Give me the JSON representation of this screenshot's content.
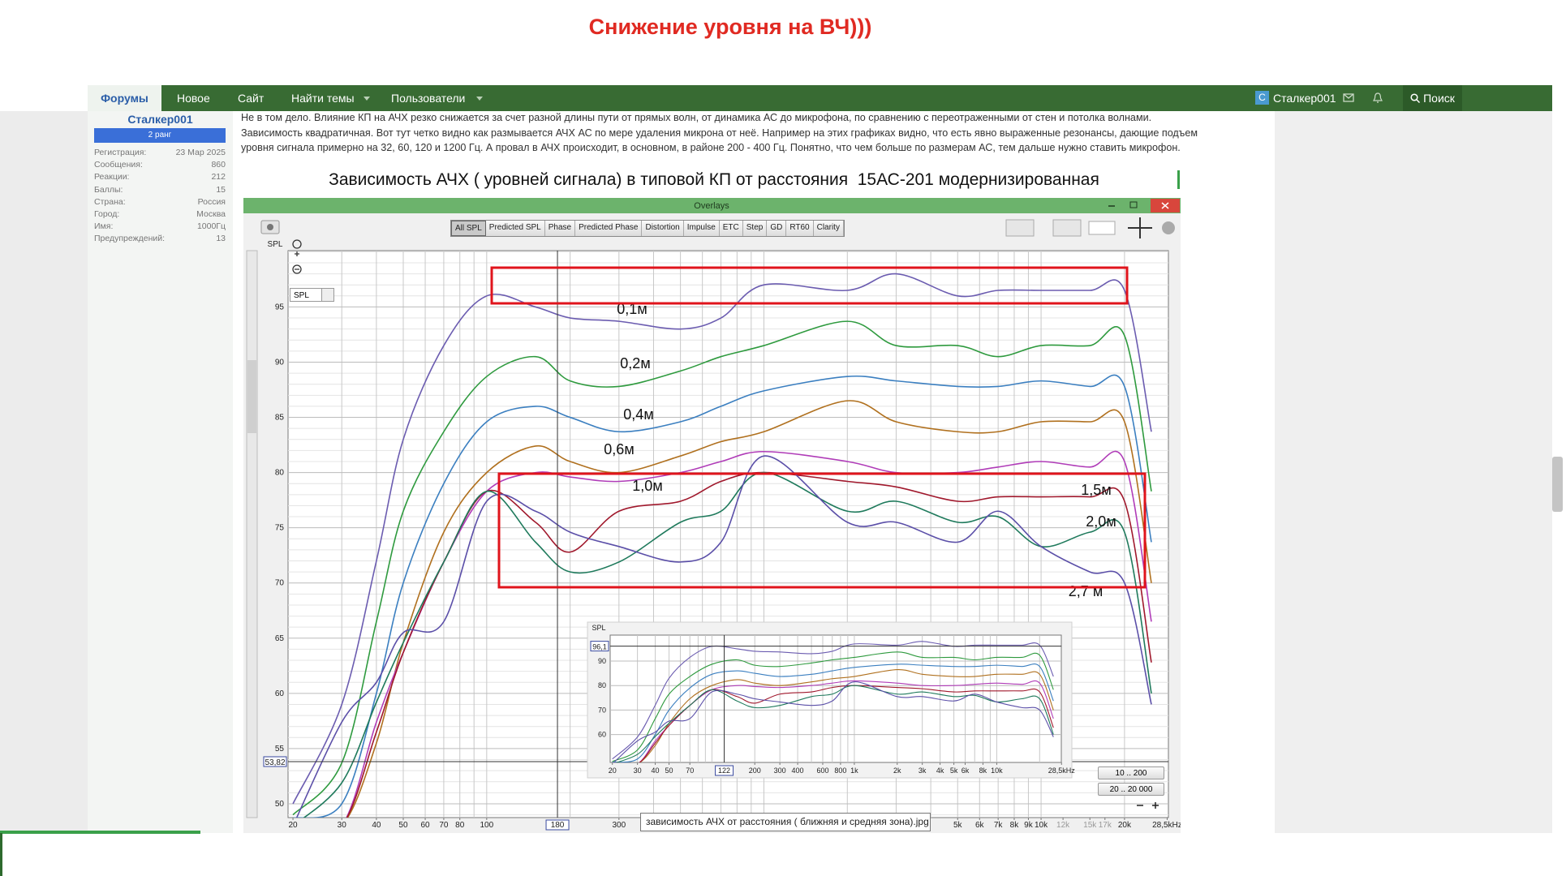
{
  "header": {
    "title": "Снижение уровня на ВЧ)))"
  },
  "nav": {
    "items": [
      "Форумы",
      "Новое",
      "Сайт",
      "Найти темы",
      "Пользователи"
    ],
    "avatar": "С",
    "user": "Сталкер001",
    "search": "Поиск"
  },
  "sidebar": {
    "username": "Сталкер001",
    "rank": "2 ранг",
    "stats": [
      {
        "label": "Регистрация:",
        "value": "23 Мар 2025"
      },
      {
        "label": "Сообщения:",
        "value": "860"
      },
      {
        "label": "Реакции:",
        "value": "212"
      },
      {
        "label": "Баллы:",
        "value": "15"
      },
      {
        "label": "Страна:",
        "value": "Россия"
      },
      {
        "label": "Город:",
        "value": "Москва"
      },
      {
        "label": "Имя:",
        "value": "1000Гц"
      },
      {
        "label": "Предупреждений:",
        "value": "13"
      }
    ]
  },
  "post": {
    "lines": [
      "Не в том дело. Влияние КП на АЧХ резко снижается за счет разной длины пути от прямых волн, от динамика АС до микрофона, по сравнению с переотраженными от стен и потолка волнами.",
      "Зависимость квадратичная. Вот тут четко видно как размывается АЧХ АС по мере удаления микрона от неё. Например на этих графиках видно, что есть явно выраженные резонансы, дающие подъем",
      "уровня сигнала примерно на 32, 60, 120 и 1200 Гц. А провал в АЧХ происходит, в основном, в районе 200 - 400 Гц. Понятно, что чем больше по размерам АС, тем дальше нужно ставить микрофон."
    ]
  },
  "image": {
    "caption": "Зависимость АЧХ ( уровней сигнала) в типовой КП от расстояния  15АС-201 модернизированная",
    "window_title": "Overlays",
    "toolbar": [
      "All SPL",
      "Predicted SPL",
      "Phase",
      "Predicted Phase",
      "Distortion",
      "Impulse",
      "ETC",
      "Step",
      "GD",
      "RT60",
      "Clarity"
    ],
    "dropdown": "SPL",
    "zoom_buttons": [
      "10 .. 200",
      "20 .. 20 000"
    ],
    "tooltip": "зависимость АЧХ от расстояния ( ближняя и средняя зона).jpg",
    "chart": {
      "type": "line",
      "log_x": true,
      "y_label": "SPL",
      "xlim": [
        19.2,
        28800
      ],
      "ylim": [
        48.75,
        100.1
      ],
      "yticks": [
        50,
        55,
        60,
        65,
        70,
        75,
        80,
        85,
        90,
        95
      ],
      "ygrid": [
        49,
        51,
        52,
        53,
        54,
        56,
        57,
        58,
        59,
        61,
        62,
        63,
        64,
        66,
        67,
        68,
        69,
        71,
        72,
        73,
        74,
        76,
        77,
        78,
        79,
        81,
        82,
        83,
        84,
        86,
        87,
        88,
        89,
        91,
        92,
        93,
        94,
        96,
        97,
        98,
        99,
        100
      ],
      "xgrid": [
        30,
        40,
        50,
        60,
        70,
        80,
        90,
        100,
        200,
        300,
        400,
        500,
        600,
        700,
        800,
        900,
        1000,
        2000,
        3000,
        4000,
        5000,
        6000,
        7000,
        8000,
        9000,
        10000,
        20000
      ],
      "xticks": [
        20,
        30,
        40,
        50,
        60,
        70,
        80,
        100,
        300,
        {
          "value": 5000,
          "label": "5k"
        },
        {
          "value": 6000,
          "label": "6k"
        },
        {
          "value": 7000,
          "label": "7k"
        },
        {
          "value": 8000,
          "label": "8k"
        },
        {
          "value": 9000,
          "label": "9k"
        },
        {
          "value": 10000,
          "label": "10k"
        },
        {
          "value": 12000,
          "label": "12k"
        },
        {
          "value": 15000,
          "label": "15k"
        },
        {
          "value": 17000,
          "label": "17k"
        },
        {
          "value": 20000,
          "label": "20k"
        },
        {
          "value": 28500,
          "label": "28,5kHz"
        }
      ],
      "cursor": {
        "x": {
          "value": 180,
          "label": "180"
        },
        "y": {
          "value": 53.82,
          "label": "53,82"
        }
      },
      "x": [
        20,
        30,
        40,
        50,
        70,
        100,
        150,
        200,
        300,
        500,
        700,
        1000,
        2000,
        3000,
        5000,
        7000,
        10000,
        15000,
        20000,
        25000
      ],
      "series": [
        {
          "name": "0,1м",
          "color": "#6b5cb0",
          "values": [
            50,
            59,
            72,
            83,
            91.5,
            96,
            95,
            94,
            93.7,
            93,
            94,
            97,
            96.5,
            98,
            96,
            96.5,
            96.5,
            96.5,
            96.5,
            83.7
          ]
        },
        {
          "name": "0,2м",
          "color": "#2e9a3e",
          "values": [
            49,
            53.7,
            66.5,
            76.5,
            83.7,
            88.7,
            90.5,
            88.3,
            87.8,
            89.2,
            90.5,
            91.5,
            93.7,
            91.5,
            91.5,
            90.5,
            91.5,
            91.5,
            92.4,
            78.3
          ]
        },
        {
          "name": "0,4м",
          "color": "#3b7fc0",
          "values": [
            48.7,
            50,
            60,
            70,
            79,
            84.6,
            86,
            85,
            83.7,
            84.6,
            86,
            87.4,
            88.7,
            88.3,
            87.8,
            87.8,
            88.3,
            87.8,
            87.8,
            73.7
          ]
        },
        {
          "name": "0,6м",
          "color": "#b0701e",
          "values": [
            47,
            48,
            55.5,
            64.6,
            74.6,
            80,
            82.4,
            81,
            80,
            81.5,
            82.8,
            83.7,
            86.5,
            84.6,
            83.7,
            83.7,
            84.6,
            84.6,
            84.6,
            70
          ]
        },
        {
          "name": "1,0м",
          "color": "#b03cb8",
          "values": [
            47,
            48,
            57.4,
            63.7,
            71.9,
            78.3,
            80,
            79.6,
            79.2,
            80,
            81,
            81.9,
            81,
            80,
            80,
            80.5,
            81,
            80.5,
            81,
            66.5
          ]
        },
        {
          "name": "1,5м",
          "color": "#a0182c",
          "values": [
            47,
            48,
            56.5,
            63.7,
            71.9,
            78.3,
            75.5,
            72.8,
            76.5,
            77.4,
            79.2,
            80,
            79.2,
            78.7,
            77.4,
            77.8,
            77.8,
            77.8,
            77.4,
            62.8
          ]
        },
        {
          "name": "2,0м",
          "color": "#1f7a5c",
          "values": [
            48,
            51.9,
            59.2,
            64.6,
            71.9,
            78.3,
            73.7,
            71,
            71.9,
            75.5,
            76.5,
            80,
            76.5,
            77.4,
            75.5,
            76,
            73.3,
            74.6,
            74.6,
            60
          ]
        },
        {
          "name": "2,7 м",
          "color": "#5b4fa8",
          "values": [
            48,
            57.4,
            61,
            65.5,
            66.5,
            77.4,
            76.5,
            74.6,
            73.3,
            71.9,
            73.7,
            81.5,
            75.5,
            75.5,
            73.7,
            76.5,
            73.3,
            71,
            70,
            59
          ]
        }
      ]
    },
    "inset": {
      "y_label": "SPL",
      "log_x": true,
      "xlim": [
        19.3,
        28400
      ],
      "ylim": [
        48.6,
        100.6
      ],
      "yticks": [
        60,
        70,
        80,
        90
      ],
      "xgrid": [
        30,
        40,
        50,
        60,
        70,
        80,
        90,
        100,
        200,
        300,
        400,
        500,
        600,
        700,
        800,
        900,
        1000,
        2000,
        3000,
        4000,
        5000,
        6000,
        7000,
        8000,
        9000,
        10000,
        20000
      ],
      "xticks": [
        20,
        30,
        40,
        50,
        70,
        200,
        300,
        400,
        600,
        800,
        {
          "value": 1000,
          "label": "1k"
        },
        {
          "value": 2000,
          "label": "2k"
        },
        {
          "value": 3000,
          "label": "3k"
        },
        {
          "value": 4000,
          "label": "4k"
        },
        {
          "value": 5000,
          "label": "5k"
        },
        {
          "value": 6000,
          "label": "6k"
        },
        {
          "value": 8000,
          "label": "8k"
        },
        {
          "value": 10000,
          "label": "10k"
        },
        {
          "value": 28500,
          "label": "28,5kHz"
        }
      ],
      "cursor": {
        "x": {
          "value": 122,
          "label": "122"
        },
        "y": {
          "value": 96.1,
          "label": "96,1"
        }
      }
    }
  }
}
